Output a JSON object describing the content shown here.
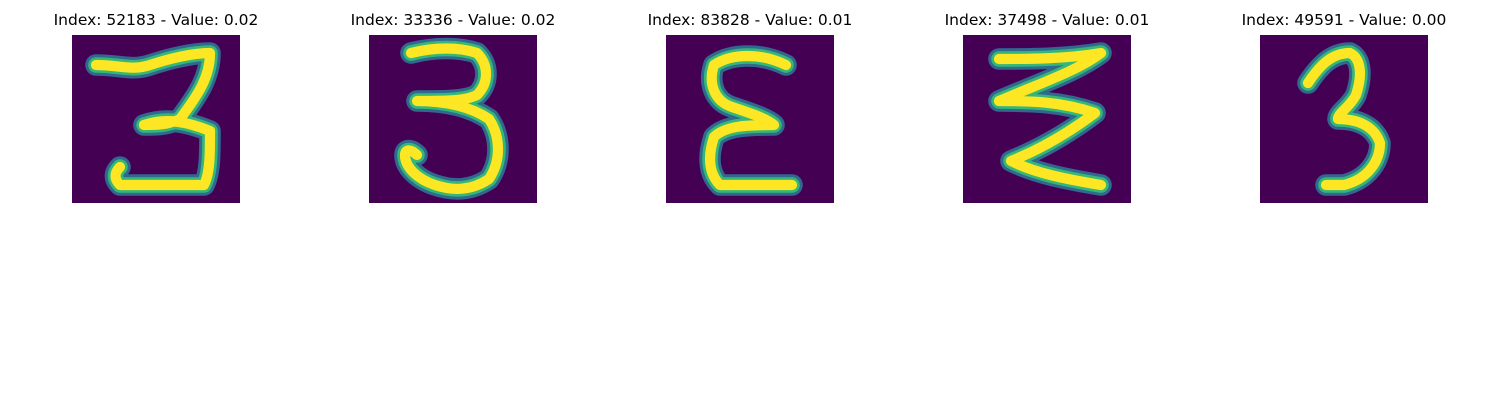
{
  "colors": {
    "background": "#440154",
    "stroke_edge": "#31688e",
    "stroke_mid": "#35b779",
    "stroke_core": "#fde725"
  },
  "panels": [
    {
      "title": "Index: 52183 - Value: 0.02",
      "digit": "3"
    },
    {
      "title": "Index: 33336 - Value: 0.02",
      "digit": "3"
    },
    {
      "title": "Index: 83828 - Value: 0.01",
      "digit": "3"
    },
    {
      "title": "Index: 37498 - Value: 0.01",
      "digit": "3"
    },
    {
      "title": "Index: 49591 - Value: 0.00",
      "digit": "3"
    }
  ]
}
